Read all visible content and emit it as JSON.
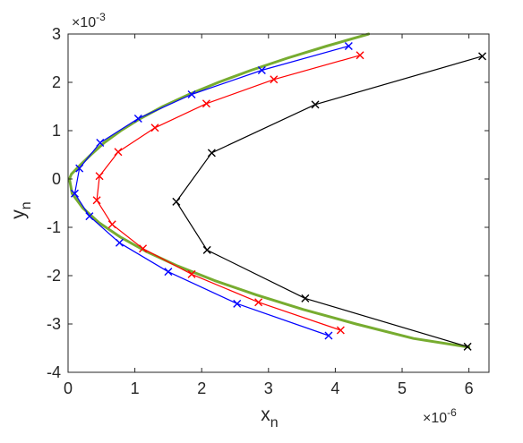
{
  "chart_data": {
    "type": "line",
    "x_exponent_label": "×10",
    "x_exponent_power": "-6",
    "y_exponent_label": "×10",
    "y_exponent_power": "-3",
    "xlabel": "x",
    "xlabel_sub": "n",
    "ylabel": "y",
    "ylabel_sub": "n",
    "xlim": [
      0,
      6.3
    ],
    "ylim": [
      -4,
      3
    ],
    "x_ticks": [
      0,
      1,
      2,
      3,
      4,
      5,
      6
    ],
    "y_ticks": [
      -4,
      -3,
      -2,
      -1,
      0,
      1,
      2,
      3
    ],
    "grid": false,
    "colors": {
      "green": "#77ac30",
      "blue": "#0000ff",
      "red": "#ff0000",
      "black": "#000000",
      "axes": "#262626"
    },
    "series": [
      {
        "color": "#77ac30",
        "marker": "none",
        "line_width": 3,
        "points": [
          [
            4.5,
            3.0
          ],
          [
            3.87,
            2.75
          ],
          [
            3.28,
            2.5
          ],
          [
            2.74,
            2.25
          ],
          [
            2.25,
            2.0
          ],
          [
            1.81,
            1.75
          ],
          [
            1.42,
            1.5
          ],
          [
            1.08,
            1.25
          ],
          [
            0.79,
            1.0
          ],
          [
            0.54,
            0.75
          ],
          [
            0.34,
            0.5
          ],
          [
            0.19,
            0.3
          ],
          [
            0.05,
            0.1
          ],
          [
            0.02,
            0.0
          ],
          [
            0.06,
            -0.3
          ],
          [
            0.22,
            -0.6
          ],
          [
            0.46,
            -0.9
          ],
          [
            0.78,
            -1.2
          ],
          [
            1.17,
            -1.5
          ],
          [
            1.64,
            -1.8
          ],
          [
            2.19,
            -2.1
          ],
          [
            2.82,
            -2.4
          ],
          [
            3.52,
            -2.7
          ],
          [
            4.31,
            -3.0
          ],
          [
            5.17,
            -3.3
          ],
          [
            6.0,
            -3.48
          ]
        ]
      },
      {
        "color": "#0000ff",
        "marker": "x",
        "line_width": 1.2,
        "points": [
          [
            4.2,
            2.75
          ],
          [
            2.9,
            2.25
          ],
          [
            1.85,
            1.75
          ],
          [
            1.05,
            1.25
          ],
          [
            0.48,
            0.75
          ],
          [
            0.17,
            0.22
          ],
          [
            0.1,
            -0.3
          ],
          [
            0.32,
            -0.77
          ],
          [
            0.77,
            -1.32
          ],
          [
            1.5,
            -1.92
          ],
          [
            2.53,
            -2.58
          ],
          [
            3.9,
            -3.24
          ]
        ]
      },
      {
        "color": "#ff0000",
        "marker": "x",
        "line_width": 1.2,
        "points": [
          [
            4.37,
            2.56
          ],
          [
            3.08,
            2.06
          ],
          [
            2.07,
            1.56
          ],
          [
            1.3,
            1.06
          ],
          [
            0.75,
            0.56
          ],
          [
            0.47,
            0.06
          ],
          [
            0.43,
            -0.44
          ],
          [
            0.66,
            -0.94
          ],
          [
            1.12,
            -1.44
          ],
          [
            1.85,
            -1.97
          ],
          [
            2.85,
            -2.55
          ],
          [
            4.08,
            -3.13
          ]
        ]
      },
      {
        "color": "#000000",
        "marker": "x",
        "line_width": 1.2,
        "points": [
          [
            6.2,
            2.54
          ],
          [
            3.7,
            1.54
          ],
          [
            2.15,
            0.54
          ],
          [
            1.62,
            -0.47
          ],
          [
            2.08,
            -1.47
          ],
          [
            3.55,
            -2.47
          ],
          [
            5.98,
            -3.47
          ]
        ]
      }
    ]
  }
}
